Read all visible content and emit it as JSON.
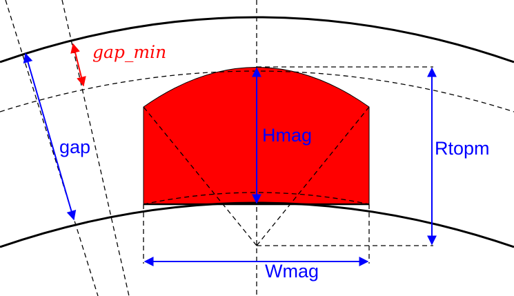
{
  "labels": {
    "gap_min": "gap_min",
    "gap": "gap",
    "hmag": "Hmag",
    "rtopm": "Rtopm",
    "wmag": "Wmag"
  },
  "colors": {
    "magnet_fill": "#ff0000",
    "dimension_blue": "#0000ff",
    "dimension_red": "#ff0000",
    "outline": "#000000",
    "background": "#ffffff"
  }
}
